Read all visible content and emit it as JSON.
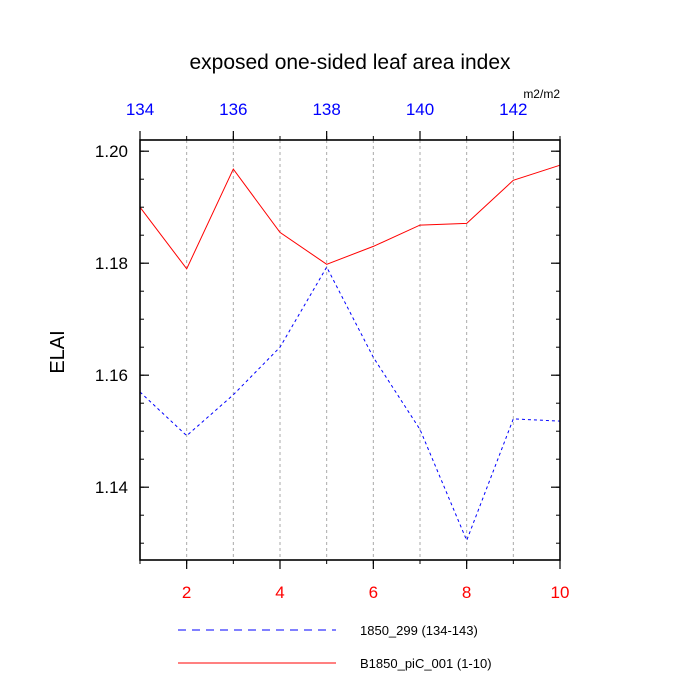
{
  "chart_data": {
    "type": "line",
    "title": "exposed one-sided leaf area index",
    "ylabel": "ELAI",
    "units": "m2/m2",
    "ylim": [
      1.127,
      1.202
    ],
    "y_ticks": [
      1.14,
      1.16,
      1.18,
      1.2
    ],
    "y_tick_labels": [
      "1.14",
      "1.16",
      "1.18",
      "1.20"
    ],
    "y_minor_step": 0.005,
    "bottom_axis": {
      "range": [
        1,
        10
      ],
      "ticks": [
        2,
        4,
        6,
        8,
        10
      ],
      "minor_step": 1,
      "color": "#ff0000"
    },
    "top_axis": {
      "range": [
        134,
        143
      ],
      "ticks": [
        134,
        136,
        138,
        140,
        142
      ],
      "minor_step": 1,
      "color": "#0000ff"
    },
    "vertical_gridlines_at_bottom_x": [
      2,
      3,
      4,
      5,
      6,
      7,
      8,
      9
    ],
    "series": [
      {
        "name": "1850_299 (134-143)",
        "axis": "top",
        "color": "#0000ff",
        "dash": "dashed",
        "x": [
          134,
          135,
          136,
          137,
          138,
          139,
          140,
          141,
          142,
          143
        ],
        "y": [
          1.157,
          1.1492,
          1.1565,
          1.165,
          1.1793,
          1.1632,
          1.1503,
          1.1305,
          1.1522,
          1.1518
        ]
      },
      {
        "name": "B1850_piC_001 (1-10)",
        "axis": "bottom",
        "color": "#ff0000",
        "dash": "solid",
        "x": [
          1,
          2,
          3,
          4,
          5,
          6,
          7,
          8,
          9,
          10
        ],
        "y": [
          1.19,
          1.179,
          1.1968,
          1.1855,
          1.1798,
          1.183,
          1.1868,
          1.1871,
          1.1948,
          1.1975
        ]
      }
    ],
    "legend_position": "bottom-center"
  }
}
